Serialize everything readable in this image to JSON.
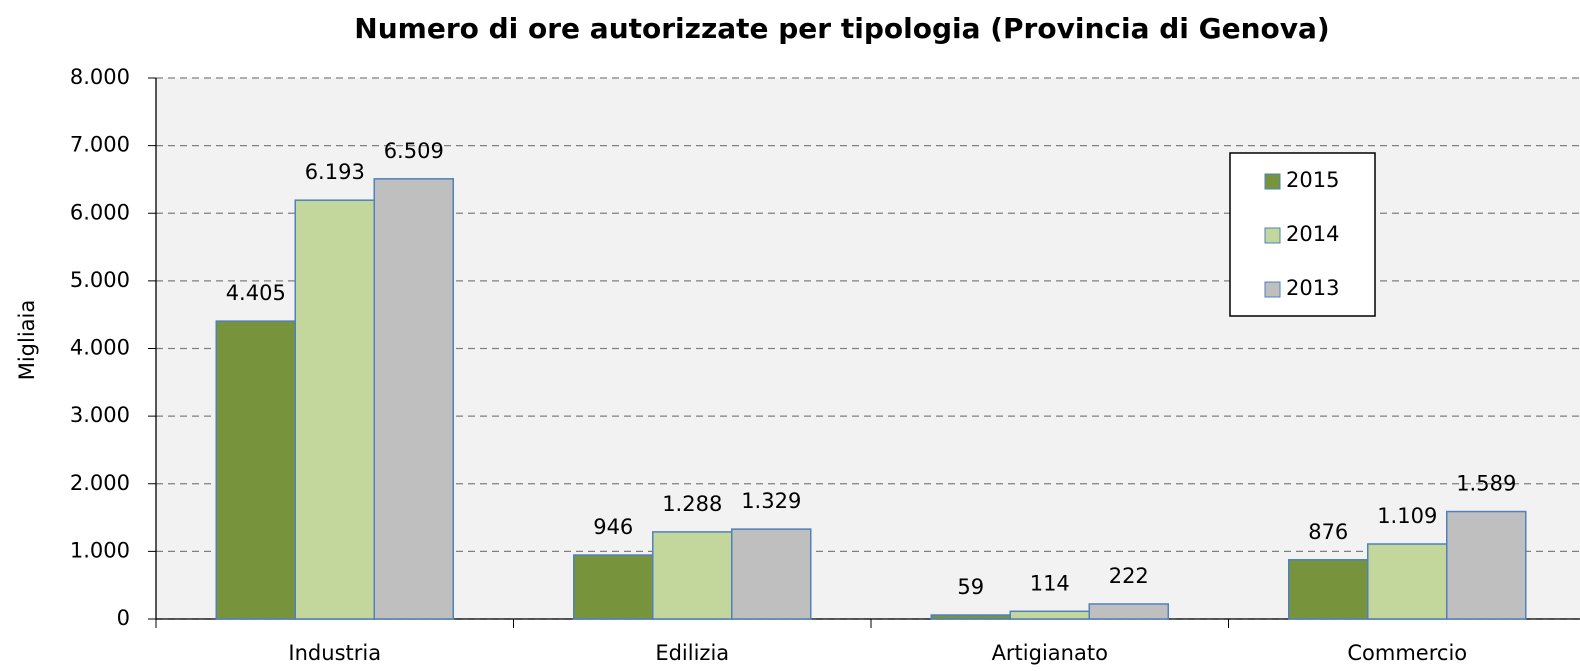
{
  "chart_data": {
    "type": "bar",
    "title": "Numero di ore autorizzate per tipologia (Provincia di Genova)",
    "y_label": "Migliaia",
    "categories": [
      "Industria",
      "Edilizia",
      "Artigianato",
      "Commercio"
    ],
    "series": [
      {
        "name": "2015",
        "color": "#77933c",
        "values": [
          4405,
          946,
          59,
          876
        ],
        "value_labels": [
          "4.405",
          "946",
          "59",
          "876"
        ]
      },
      {
        "name": "2014",
        "color": "#c3d69b",
        "values": [
          6193,
          1288,
          114,
          1109
        ],
        "value_labels": [
          "6.193",
          "1.288",
          "114",
          "1.109"
        ]
      },
      {
        "name": "2013",
        "color": "#bfbfbf",
        "values": [
          6509,
          1329,
          222,
          1589
        ],
        "value_labels": [
          "6.509",
          "1.329",
          "222",
          "1.589"
        ]
      }
    ],
    "ylim": [
      0,
      8000
    ],
    "yticks": [
      0,
      {
        "value": 1000,
        "label": "1.000"
      },
      {
        "value": 2000,
        "label": "2.000"
      },
      {
        "value": 3000,
        "label": "3.000"
      },
      {
        "value": 4000,
        "label": "4.000"
      },
      {
        "value": 5000,
        "label": "5.000"
      },
      {
        "value": 6000,
        "label": "6.000"
      },
      {
        "value": 7000,
        "label": "7.000"
      },
      {
        "value": 8000,
        "label": "8.000"
      }
    ],
    "grid": true,
    "legend": "upper right"
  }
}
